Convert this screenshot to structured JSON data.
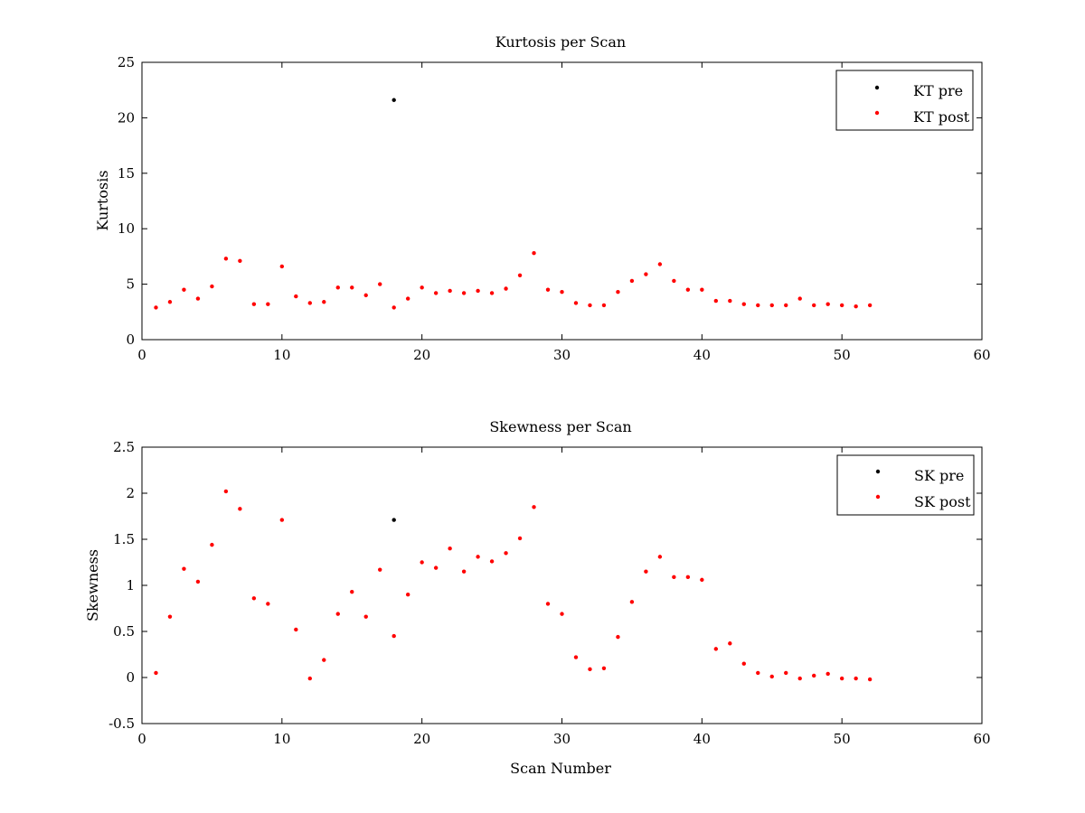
{
  "colors": {
    "pre": "#000000",
    "post": "#ff0000",
    "axes": "#000000",
    "background": "#ffffff"
  },
  "chart_data": [
    {
      "type": "scatter",
      "title": "Kurtosis per Scan",
      "xlabel": "",
      "ylabel": "Kurtosis",
      "xlim": [
        0,
        60
      ],
      "ylim": [
        0,
        25
      ],
      "xticks": [
        0,
        10,
        20,
        30,
        40,
        50,
        60
      ],
      "yticks": [
        0,
        5,
        10,
        15,
        20,
        25
      ],
      "grid": false,
      "legend_position": "top-right",
      "series": [
        {
          "name": "KT pre",
          "color": "#000000",
          "points": [
            [
              18,
              21.6
            ]
          ]
        },
        {
          "name": "KT post",
          "color": "#ff0000",
          "points": [
            [
              1,
              2.9
            ],
            [
              2,
              3.4
            ],
            [
              3,
              4.5
            ],
            [
              4,
              3.7
            ],
            [
              5,
              4.8
            ],
            [
              6,
              7.3
            ],
            [
              7,
              7.1
            ],
            [
              8,
              3.2
            ],
            [
              9,
              3.2
            ],
            [
              10,
              6.6
            ],
            [
              11,
              3.9
            ],
            [
              12,
              3.3
            ],
            [
              13,
              3.4
            ],
            [
              14,
              4.7
            ],
            [
              15,
              4.7
            ],
            [
              16,
              4.0
            ],
            [
              17,
              5.0
            ],
            [
              18,
              2.9
            ],
            [
              19,
              3.7
            ],
            [
              20,
              4.7
            ],
            [
              21,
              4.2
            ],
            [
              22,
              4.4
            ],
            [
              23,
              4.2
            ],
            [
              24,
              4.4
            ],
            [
              25,
              4.2
            ],
            [
              26,
              4.6
            ],
            [
              27,
              5.8
            ],
            [
              28,
              7.8
            ],
            [
              29,
              4.5
            ],
            [
              30,
              4.3
            ],
            [
              31,
              3.3
            ],
            [
              32,
              3.1
            ],
            [
              33,
              3.1
            ],
            [
              34,
              4.3
            ],
            [
              35,
              5.3
            ],
            [
              36,
              5.9
            ],
            [
              37,
              6.8
            ],
            [
              38,
              5.3
            ],
            [
              39,
              4.5
            ],
            [
              40,
              4.5
            ],
            [
              41,
              3.5
            ],
            [
              42,
              3.5
            ],
            [
              43,
              3.2
            ],
            [
              44,
              3.1
            ],
            [
              45,
              3.1
            ],
            [
              46,
              3.1
            ],
            [
              47,
              3.7
            ],
            [
              48,
              3.1
            ],
            [
              49,
              3.2
            ],
            [
              50,
              3.1
            ],
            [
              51,
              3.0
            ],
            [
              52,
              3.1
            ]
          ]
        }
      ]
    },
    {
      "type": "scatter",
      "title": "Skewness per Scan",
      "xlabel": "Scan Number",
      "ylabel": "Skewness",
      "xlim": [
        0,
        60
      ],
      "ylim": [
        -0.5,
        2.5
      ],
      "xticks": [
        0,
        10,
        20,
        30,
        40,
        50,
        60
      ],
      "yticks": [
        -0.5,
        0,
        0.5,
        1,
        1.5,
        2,
        2.5
      ],
      "ytick_labels": [
        "-0.5",
        "0",
        "0.5",
        "1",
        "1.5",
        "2",
        "2.5"
      ],
      "grid": false,
      "legend_position": "top-right",
      "series": [
        {
          "name": "SK pre",
          "color": "#000000",
          "points": [
            [
              18,
              1.71
            ]
          ]
        },
        {
          "name": "SK post",
          "color": "#ff0000",
          "points": [
            [
              1,
              0.05
            ],
            [
              2,
              0.66
            ],
            [
              3,
              1.18
            ],
            [
              4,
              1.04
            ],
            [
              5,
              1.44
            ],
            [
              6,
              2.02
            ],
            [
              7,
              1.83
            ],
            [
              8,
              0.86
            ],
            [
              9,
              0.8
            ],
            [
              10,
              1.71
            ],
            [
              11,
              0.52
            ],
            [
              12,
              -0.01
            ],
            [
              13,
              0.19
            ],
            [
              14,
              0.69
            ],
            [
              15,
              0.93
            ],
            [
              16,
              0.66
            ],
            [
              17,
              1.17
            ],
            [
              18,
              0.45
            ],
            [
              19,
              0.9
            ],
            [
              20,
              1.25
            ],
            [
              21,
              1.19
            ],
            [
              22,
              1.4
            ],
            [
              23,
              1.15
            ],
            [
              24,
              1.31
            ],
            [
              25,
              1.26
            ],
            [
              26,
              1.35
            ],
            [
              27,
              1.51
            ],
            [
              28,
              1.85
            ],
            [
              29,
              0.8
            ],
            [
              30,
              0.69
            ],
            [
              31,
              0.22
            ],
            [
              32,
              0.09
            ],
            [
              33,
              0.1
            ],
            [
              34,
              0.44
            ],
            [
              35,
              0.82
            ],
            [
              36,
              1.15
            ],
            [
              37,
              1.31
            ],
            [
              38,
              1.09
            ],
            [
              39,
              1.09
            ],
            [
              40,
              1.06
            ],
            [
              41,
              0.31
            ],
            [
              42,
              0.37
            ],
            [
              43,
              0.15
            ],
            [
              44,
              0.05
            ],
            [
              45,
              0.01
            ],
            [
              46,
              0.05
            ],
            [
              47,
              -0.01
            ],
            [
              48,
              0.02
            ],
            [
              49,
              0.04
            ],
            [
              50,
              -0.01
            ],
            [
              51,
              -0.01
            ],
            [
              52,
              -0.02
            ]
          ]
        }
      ]
    }
  ]
}
